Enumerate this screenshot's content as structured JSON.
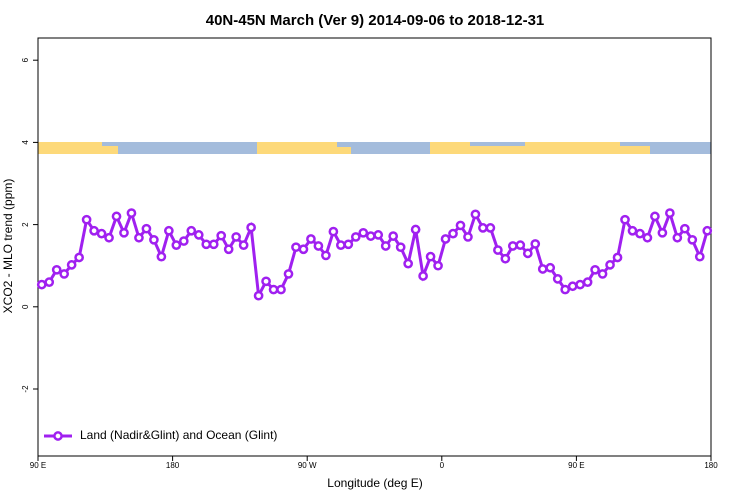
{
  "chart_data": {
    "type": "line",
    "title": "40N-45N March (Ver 9)   2014-09-06 to 2018-12-31",
    "xlabel": "Longitude (deg E)",
    "ylabel": "XCO2 - MLO trend (ppm)",
    "xlim": [
      90,
      540
    ],
    "ylim": [
      -3.63,
      6.54
    ],
    "xticks": [
      {
        "value": 90,
        "label": "90 E"
      },
      180,
      {
        "value": 270,
        "label": "90 W"
      },
      {
        "value": 360,
        "label": "0"
      },
      {
        "value": 450,
        "label": "90 E"
      },
      {
        "value": 540,
        "label": "180"
      }
    ],
    "yticks": [
      -2,
      0,
      2,
      4,
      6
    ],
    "legend": "bottom-left",
    "x": [
      92.5,
      97.5,
      102.5,
      107.5,
      112.5,
      117.5,
      122.5,
      127.5,
      132.5,
      137.5,
      142.5,
      147.5,
      152.5,
      157.5,
      162.5,
      167.5,
      172.5,
      177.5,
      182.5,
      187.5,
      192.5,
      197.5,
      202.5,
      207.5,
      212.5,
      217.5,
      222.5,
      227.5,
      232.5,
      237.5,
      242.5,
      247.5,
      252.5,
      257.5,
      262.5,
      267.5,
      272.5,
      277.5,
      282.5,
      287.5,
      292.5,
      297.5,
      302.5,
      307.5,
      312.5,
      317.5,
      322.5,
      327.5,
      332.5,
      337.5,
      342.5,
      347.5,
      352.5,
      357.5,
      362.5,
      367.5,
      372.5,
      377.5,
      382.5,
      387.5,
      392.5,
      397.5,
      402.5,
      407.5,
      412.5,
      417.5,
      422.5,
      427.5,
      432.5,
      437.5,
      442.5,
      447.5,
      452.5,
      457.5,
      462.5,
      467.5,
      472.5,
      477.5,
      482.5,
      487.5,
      492.5,
      497.5,
      502.5,
      507.5,
      512.5,
      517.5,
      522.5,
      527.5,
      532.5,
      537.5
    ],
    "series": [
      {
        "name": "Land (Nadir&Glint) and Ocean (Glint)",
        "color": "#a020f0",
        "values": [
          0.54,
          0.6,
          0.9,
          0.8,
          1.02,
          1.2,
          2.12,
          1.85,
          1.78,
          1.68,
          2.2,
          1.8,
          2.28,
          1.68,
          1.9,
          1.63,
          1.22,
          1.85,
          1.5,
          1.6,
          1.85,
          1.75,
          1.52,
          1.52,
          1.73,
          1.4,
          1.7,
          1.5,
          1.93,
          0.27,
          0.62,
          0.42,
          0.42,
          0.8,
          1.45,
          1.4,
          1.65,
          1.48,
          1.25,
          1.83,
          1.5,
          1.52,
          1.7,
          1.8,
          1.72,
          1.75,
          1.48,
          1.72,
          1.45,
          1.05,
          1.88,
          0.75,
          1.22,
          1.0,
          1.65,
          1.78,
          1.98,
          1.7,
          2.25,
          1.92,
          1.92,
          1.38,
          1.17,
          1.48,
          1.5,
          1.3,
          1.53,
          0.92,
          0.95,
          0.68,
          0.42,
          0.5,
          0.54,
          0.6,
          0.9,
          0.8,
          1.02,
          1.2,
          2.12,
          1.85,
          1.78,
          1.68,
          2.2,
          1.8,
          2.28,
          1.68,
          1.9,
          1.63,
          1.22,
          1.85
        ]
      }
    ]
  }
}
